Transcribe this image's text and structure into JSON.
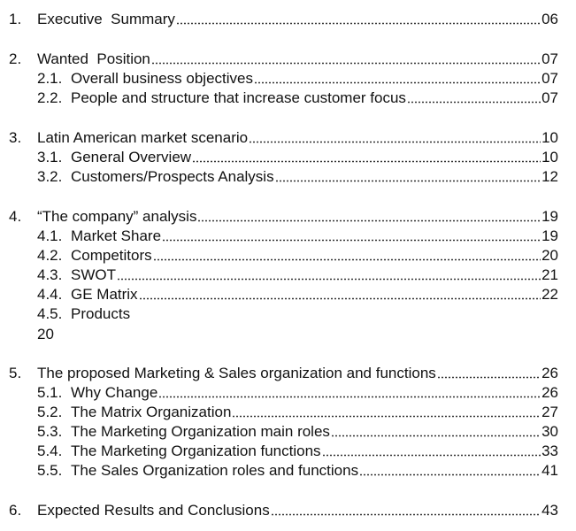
{
  "toc": {
    "sections": [
      {
        "number": "1.",
        "title": "Executive  Summary",
        "page": "06",
        "subsections": []
      },
      {
        "number": "2.",
        "title": "Wanted  Position",
        "page": "07",
        "subsections": [
          {
            "number": "2.1.",
            "title": "Overall business objectives",
            "page": "07"
          },
          {
            "number": "2.2.",
            "title": "People and structure that increase customer focus",
            "page": "07"
          }
        ]
      },
      {
        "number": "3.",
        "title": "Latin American market scenario",
        "page": "10",
        "subsections": [
          {
            "number": "3.1.",
            "title": "General Overview",
            "page": "10"
          },
          {
            "number": "3.2.",
            "title": "Customers/Prospects Analysis",
            "page": "12"
          }
        ]
      },
      {
        "number": "4.",
        "title": "“The company” analysis",
        "page": "19",
        "subsections": [
          {
            "number": "4.1.",
            "title": "Market Share",
            "page": "19"
          },
          {
            "number": "4.2.",
            "title": "Competitors",
            "page": "20"
          },
          {
            "number": "4.3.",
            "title": "SWOT",
            "page": "21"
          },
          {
            "number": "4.4.",
            "title": "GE Matrix",
            "page": "22"
          },
          {
            "number": "4.5.",
            "title": "Products",
            "page": "20"
          }
        ]
      },
      {
        "number": "5.",
        "title": "The proposed Marketing & Sales organization and functions",
        "page": "26",
        "subsections": [
          {
            "number": "5.1.",
            "title": "Why Change",
            "page": "26"
          },
          {
            "number": "5.2.",
            "title": "The Matrix Organization",
            "page": "27"
          },
          {
            "number": "5.3.",
            "title": "The Marketing Organization main roles",
            "page": "30"
          },
          {
            "number": "5.4.",
            "title": "The Marketing Organization functions",
            "page": "33"
          },
          {
            "number": "5.5.",
            "title": "The Sales Organization roles and functions",
            "page": "41"
          }
        ]
      },
      {
        "number": "6.",
        "title": "Expected Results and Conclusions",
        "page": "43",
        "subsections": []
      }
    ]
  }
}
